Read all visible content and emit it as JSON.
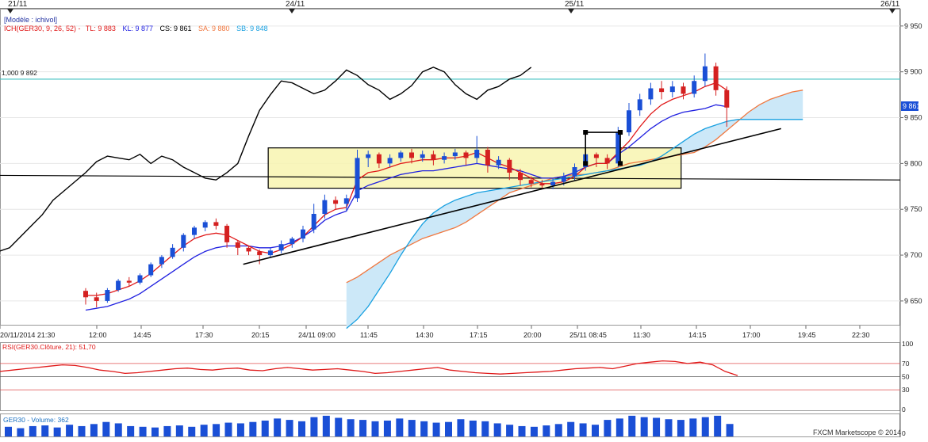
{
  "header": {
    "dates": [
      "21/11",
      "24/11",
      "25/11",
      "26/11"
    ]
  },
  "legend": {
    "model": "[Modèle : ichivol]",
    "ich_prefix": "ICH(GER30, 9, 26, 52) -",
    "tl": "TL: 9 883",
    "kl": "KL: 9 877",
    "cs": "CS: 9 861",
    "sa": "SA: 9 880",
    "sb": "SB: 9 848"
  },
  "hline_label": "1,000 9 892",
  "price_tag": "9 861",
  "rsi_label": "RSI(GER30.Clôture, 21): 51,70",
  "volume_label": "GER30 - Volume: 362",
  "footer": "FXCM Marketscope © 2014",
  "colors": {
    "candle_up": "#1a4fd6",
    "candle_down": "#d42020",
    "tenkan": "#e01818",
    "kijun": "#2020e0",
    "chikou": "#000000",
    "senkou_a": "#f07840",
    "senkou_b": "#18a0e0",
    "cloud": "#cce8f8",
    "hline": "#40c0c0",
    "rsi": "#e01818",
    "volume": "#1a4fd6",
    "box_fill": "#f8f4b0"
  },
  "chart_data": [
    {
      "type": "candlestick",
      "title": "GER30",
      "y_ticks": [
        9650,
        9700,
        9750,
        9800,
        9850,
        9900,
        9950
      ],
      "y_tick_labels": [
        "9 650",
        "9 700",
        "9 750",
        "9 800",
        "9 850",
        "9 900",
        "9 950"
      ],
      "ylim": [
        9624,
        9968
      ],
      "x_tick_labels": [
        "20/11/2014 21:30",
        "12:00",
        "14:45",
        "17:30",
        "20:15",
        "24/11 09:00",
        "11:45",
        "14:30",
        "17:15",
        "20:00",
        "25/11 08:45",
        "11:30",
        "14:15",
        "17:00",
        "19:45",
        "22:30"
      ],
      "horizontal_line": 9892,
      "candles": [],
      "tenkan": [],
      "kijun": [],
      "chikou": [],
      "senkou_a": [],
      "senkou_b": []
    },
    {
      "type": "line",
      "title": "RSI(GER30.Clôture, 21)",
      "y_ticks": [
        0,
        30,
        50,
        70,
        100
      ],
      "ylim": [
        0,
        100
      ],
      "last_value": 51.7,
      "values": []
    },
    {
      "type": "bar",
      "title": "GER30 - Volume",
      "last_value": 362,
      "values": []
    }
  ]
}
